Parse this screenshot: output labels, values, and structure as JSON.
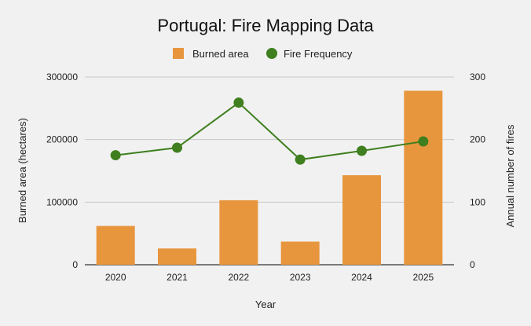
{
  "chart_data": {
    "type": "bar",
    "title": "Portugal: Fire Mapping Data",
    "xlabel": "Year",
    "ylabel": "Burned area (hectares)",
    "y2label": "Annual number of fires",
    "categories": [
      "2020",
      "2021",
      "2022",
      "2023",
      "2024",
      "2025"
    ],
    "ylim": [
      0,
      300000
    ],
    "y2lim": [
      0,
      300
    ],
    "yticks": [
      "0",
      "100000",
      "200000",
      "300000"
    ],
    "y2ticks": [
      "0",
      "100",
      "200",
      "300"
    ],
    "grid": true,
    "legend_position": "top",
    "series": [
      {
        "name": "Burned area",
        "type": "bar",
        "axis": "left",
        "color": "#e8963d",
        "values": [
          62000,
          26000,
          103000,
          37000,
          143000,
          278000
        ]
      },
      {
        "name": "Fire Frequency",
        "type": "line",
        "axis": "right",
        "color": "#3f7f1f",
        "values": [
          175,
          187,
          259,
          168,
          182,
          197
        ]
      }
    ]
  }
}
